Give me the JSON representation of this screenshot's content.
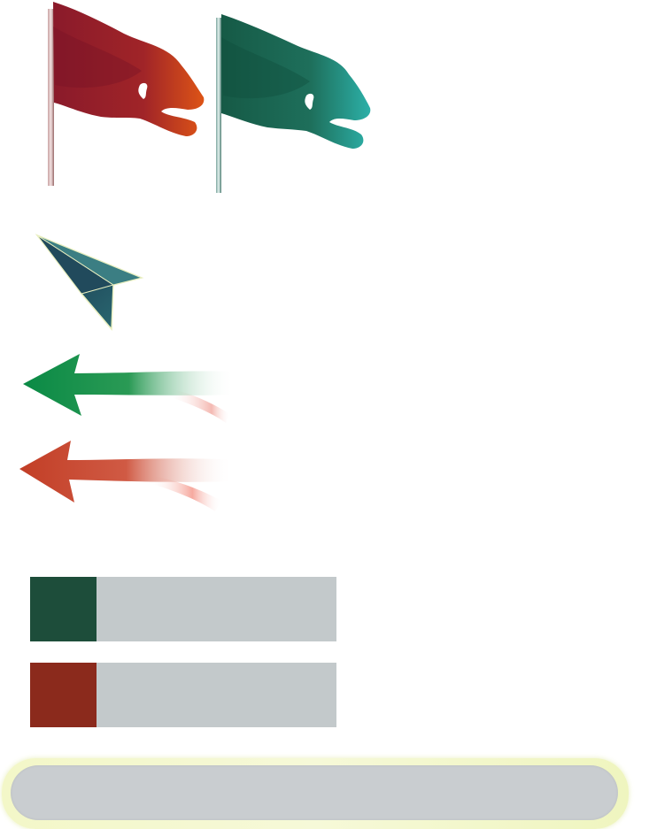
{
  "colors": {
    "flag_red": "#9b1f2a",
    "flag_red_tip": "#d8491d",
    "flag_green": "#1c6b55",
    "flag_green_tip": "#2aa09a",
    "plane_dark": "#1b3a4a",
    "plane_light": "#2f6d77",
    "arrow_green": "#0e8a45",
    "arrow_red": "#c8442a",
    "legend_green": "#1d4d3a",
    "legend_red": "#8b2a1c",
    "legend_box": "#c3c9cb",
    "panel_border": "#f3f7c8",
    "panel_fill": "#c9cdd0"
  },
  "icons": {
    "flag_red": "red-flag-icon",
    "flag_green": "green-flag-icon",
    "plane": "paper-plane-icon",
    "arrow_green": "green-arrow-left-icon",
    "arrow_red": "red-arrow-left-icon"
  },
  "legend": {
    "green": {
      "label": ""
    },
    "red": {
      "label": ""
    }
  },
  "bottom_panel": {
    "text": ""
  }
}
